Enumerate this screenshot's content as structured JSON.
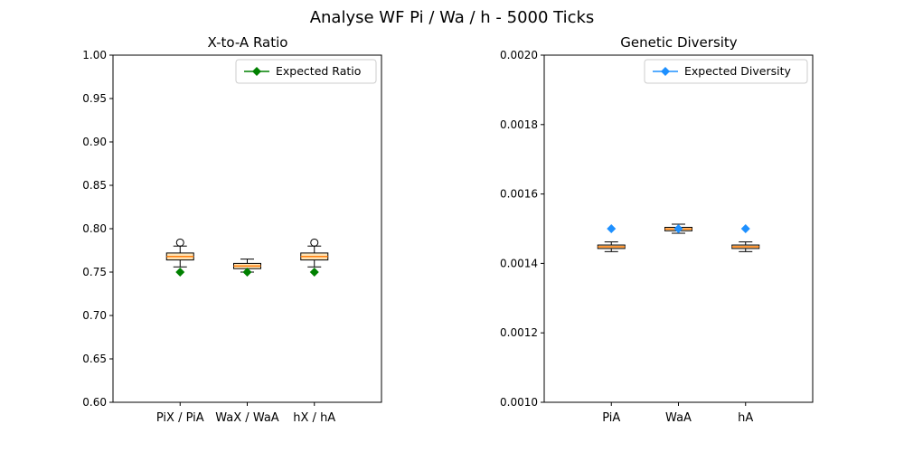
{
  "figure": {
    "title": "Analyse WF Pi / Wa / h - 5000 Ticks"
  },
  "chart_data": [
    {
      "type": "box",
      "title": "X-to-A Ratio",
      "xlabel": "",
      "ylabel": "",
      "categories": [
        "PiX / PiA",
        "WaX / WaA",
        "hX / hA"
      ],
      "ylim": [
        0.6,
        1.0
      ],
      "yticks": [
        "0.60",
        "0.65",
        "0.70",
        "0.75",
        "0.80",
        "0.85",
        "0.90",
        "0.95",
        "1.00"
      ],
      "yticks_values": [
        0.6,
        0.65,
        0.7,
        0.75,
        0.8,
        0.85,
        0.9,
        0.95,
        1.0
      ],
      "boxes": [
        {
          "whisker_low": 0.756,
          "q1": 0.764,
          "median": 0.768,
          "q3": 0.772,
          "whisker_high": 0.78,
          "outliers": [
            0.784
          ]
        },
        {
          "whisker_low": 0.75,
          "q1": 0.754,
          "median": 0.757,
          "q3": 0.76,
          "whisker_high": 0.765,
          "outliers": []
        },
        {
          "whisker_low": 0.756,
          "q1": 0.764,
          "median": 0.768,
          "q3": 0.772,
          "whisker_high": 0.78,
          "outliers": [
            0.784
          ]
        }
      ],
      "expected": {
        "name": "Expected Ratio",
        "values": [
          0.75,
          0.75,
          0.75
        ],
        "color": "#008000"
      },
      "box_color": "#ffe4b5",
      "median_color": "#ff7f0e",
      "legend_position": "top-right",
      "grid": false
    },
    {
      "type": "box",
      "title": "Genetic Diversity",
      "xlabel": "",
      "ylabel": "",
      "categories": [
        "PiA",
        "WaA",
        "hA"
      ],
      "ylim": [
        0.001,
        0.002
      ],
      "yticks": [
        "0.0010",
        "0.0012",
        "0.0014",
        "0.0016",
        "0.0018",
        "0.0020"
      ],
      "yticks_values": [
        0.001,
        0.0012,
        0.0014,
        0.0016,
        0.0018,
        0.002
      ],
      "boxes": [
        {
          "whisker_low": 0.001434,
          "q1": 0.001443,
          "median": 0.001448,
          "q3": 0.001453,
          "whisker_high": 0.001462,
          "outliers": []
        },
        {
          "whisker_low": 0.001487,
          "q1": 0.001494,
          "median": 0.001499,
          "q3": 0.001504,
          "whisker_high": 0.001513,
          "outliers": []
        },
        {
          "whisker_low": 0.001434,
          "q1": 0.001443,
          "median": 0.001448,
          "q3": 0.001453,
          "whisker_high": 0.001462,
          "outliers": []
        }
      ],
      "expected": {
        "name": "Expected Diversity",
        "values": [
          0.0015,
          0.0015,
          0.0015
        ],
        "color": "#1e90ff"
      },
      "box_color": "#ffe4b5",
      "median_color": "#ff7f0e",
      "legend_position": "top-right",
      "grid": false
    }
  ]
}
